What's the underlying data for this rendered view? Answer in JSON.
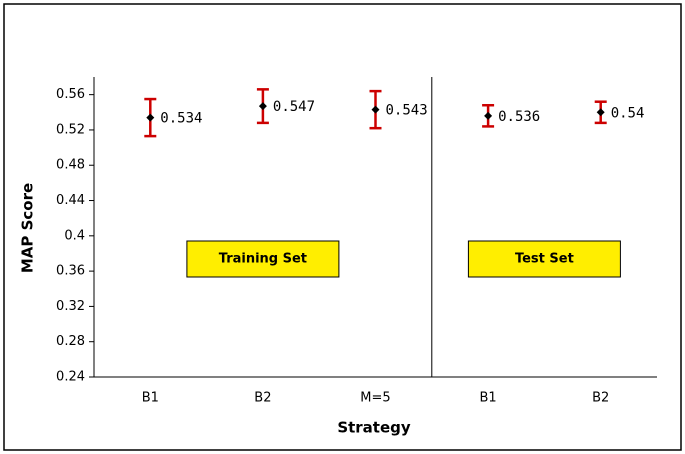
{
  "chart_data": {
    "type": "errorbar",
    "x_label": "Strategy",
    "y_label": "MAP Score",
    "categories": [
      "B1",
      "B2",
      "M=5",
      "B1",
      "B2"
    ],
    "values": [
      0.534,
      0.547,
      0.543,
      0.536,
      0.54
    ],
    "errors": [
      0.021,
      0.019,
      0.021,
      0.012,
      0.012
    ],
    "color": "#000000",
    "error_color": "#cc0000",
    "ylim": [
      0.24,
      0.58
    ],
    "yticks": [
      0.24,
      0.28,
      0.32,
      0.36,
      0.4,
      0.44,
      0.48,
      0.52,
      0.56
    ],
    "annotations": [
      "Training Set",
      "Test Set"
    ]
  }
}
